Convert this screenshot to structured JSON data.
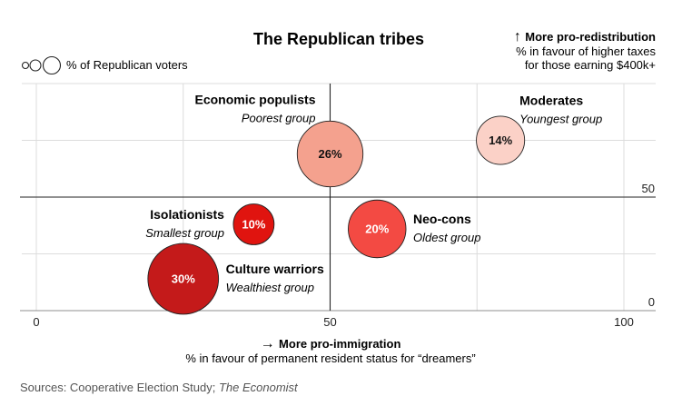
{
  "chart_data": {
    "type": "scatter",
    "title": "The Republican tribes",
    "size_legend": "% of Republican voters",
    "y_axis": {
      "title": "More pro-redistribution",
      "subtitle_lines": [
        "% in favour of higher taxes",
        "for those earning $400k+"
      ],
      "ticks": [
        0,
        50
      ],
      "range": [
        0,
        100
      ]
    },
    "x_axis": {
      "title": "More pro-immigration",
      "subtitle": "% in favour of permanent resident status for “dreamers”",
      "ticks": [
        0,
        50,
        100
      ],
      "range": [
        0,
        100
      ]
    },
    "points": [
      {
        "name": "Economic populists",
        "note": "Poorest group",
        "x": 50,
        "y": 69,
        "share": 26,
        "label": "26%",
        "color": "#f4a18e"
      },
      {
        "name": "Moderates",
        "note": "Youngest group",
        "x": 79,
        "y": 75,
        "share": 14,
        "label": "14%",
        "color": "#fbd1c7"
      },
      {
        "name": "Isolationists",
        "note": "Smallest group",
        "x": 37,
        "y": 38,
        "share": 10,
        "label": "10%",
        "color": "#e0140f"
      },
      {
        "name": "Neo-cons",
        "note": "Oldest group",
        "x": 58,
        "y": 36,
        "share": 20,
        "label": "20%",
        "color": "#f34a43"
      },
      {
        "name": "Culture warriors",
        "note": "Wealthiest group",
        "x": 25,
        "y": 14,
        "share": 30,
        "label": "30%",
        "color": "#c41a1a"
      }
    ],
    "grid": true
  },
  "source": {
    "prefix": "Sources: Cooperative Election Study; ",
    "publication": "The Economist"
  }
}
